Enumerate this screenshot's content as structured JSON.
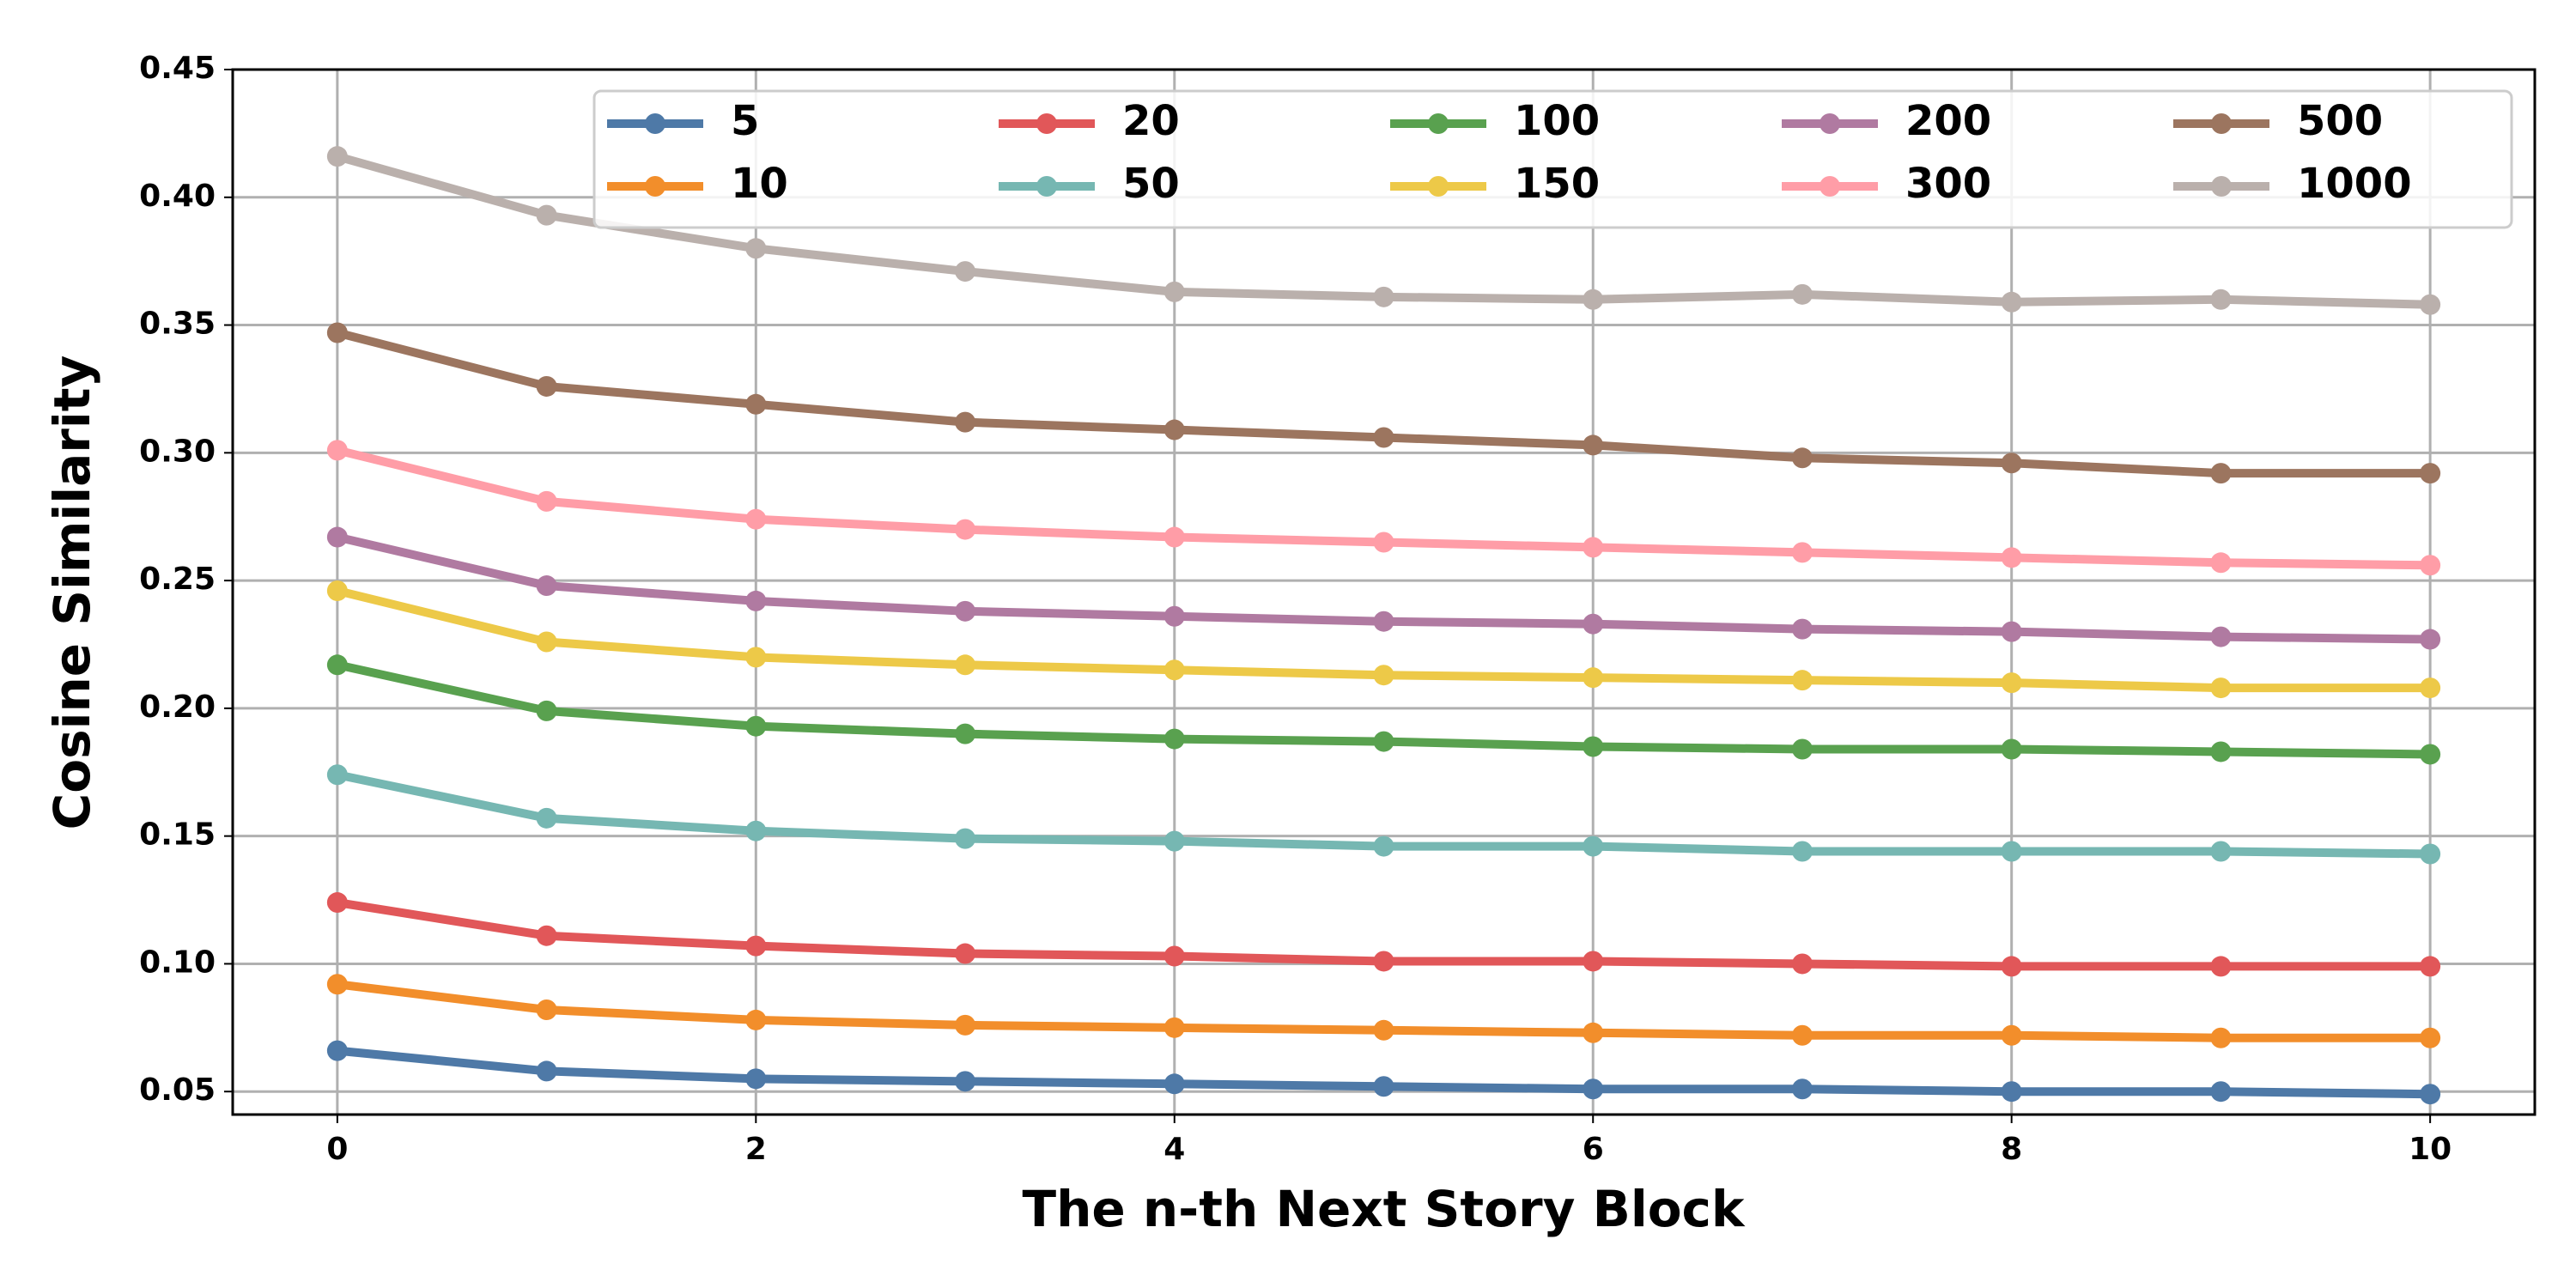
{
  "chart_data": {
    "type": "line",
    "xlabel": "The n-th Next Story Block",
    "ylabel": "Cosine Similarity",
    "x": [
      0,
      1,
      2,
      3,
      4,
      5,
      6,
      7,
      8,
      9,
      10
    ],
    "xlim": [
      -0.5,
      10.5
    ],
    "xticks": [
      0,
      2,
      4,
      6,
      8,
      10
    ],
    "ylim": [
      0.041,
      0.45
    ],
    "yticks": [
      0.05,
      {
        "value": 0.1,
        "label": "0.10"
      },
      0.15,
      {
        "value": 0.2,
        "label": "0.20"
      },
      0.25,
      {
        "value": 0.3,
        "label": "0.30"
      },
      0.35,
      {
        "value": 0.4,
        "label": "0.40"
      },
      0.45
    ],
    "grid": true,
    "legend": "upper right",
    "legend_columns": 5,
    "series": [
      {
        "name": "5",
        "color": "#4e79a7",
        "values": [
          0.066,
          0.058,
          0.055,
          0.054,
          0.053,
          0.052,
          0.051,
          0.051,
          0.05,
          0.05,
          0.049
        ]
      },
      {
        "name": "10",
        "color": "#f28e2b",
        "values": [
          0.092,
          0.082,
          0.078,
          0.076,
          0.075,
          0.074,
          0.073,
          0.072,
          0.072,
          0.071,
          0.071
        ]
      },
      {
        "name": "20",
        "color": "#e15759",
        "values": [
          0.124,
          0.111,
          0.107,
          0.104,
          0.103,
          0.101,
          0.101,
          0.1,
          0.099,
          0.099,
          0.099
        ]
      },
      {
        "name": "50",
        "color": "#76b7b2",
        "values": [
          0.174,
          0.157,
          0.152,
          0.149,
          0.148,
          0.146,
          0.146,
          0.144,
          0.144,
          0.144,
          0.143
        ]
      },
      {
        "name": "100",
        "color": "#59a14f",
        "values": [
          0.217,
          0.199,
          0.193,
          0.19,
          0.188,
          0.187,
          0.185,
          0.184,
          0.184,
          0.183,
          0.182
        ]
      },
      {
        "name": "150",
        "color": "#edc948",
        "values": [
          0.246,
          0.226,
          0.22,
          0.217,
          0.215,
          0.213,
          0.212,
          0.211,
          0.21,
          0.208,
          0.208
        ]
      },
      {
        "name": "200",
        "color": "#b07aa1",
        "values": [
          0.267,
          0.248,
          0.242,
          0.238,
          0.236,
          0.234,
          0.233,
          0.231,
          0.23,
          0.228,
          0.227
        ]
      },
      {
        "name": "300",
        "color": "#ff9da7",
        "values": [
          0.301,
          0.281,
          0.274,
          0.27,
          0.267,
          0.265,
          0.263,
          0.261,
          0.259,
          0.257,
          0.256
        ]
      },
      {
        "name": "500",
        "color": "#9c755f",
        "values": [
          0.347,
          0.326,
          0.319,
          0.312,
          0.309,
          0.306,
          0.303,
          0.298,
          0.296,
          0.292,
          0.292
        ]
      },
      {
        "name": "1000",
        "color": "#bab0ac",
        "values": [
          0.416,
          0.393,
          0.38,
          0.371,
          0.363,
          0.361,
          0.36,
          0.362,
          0.359,
          0.36,
          0.358
        ]
      }
    ]
  }
}
